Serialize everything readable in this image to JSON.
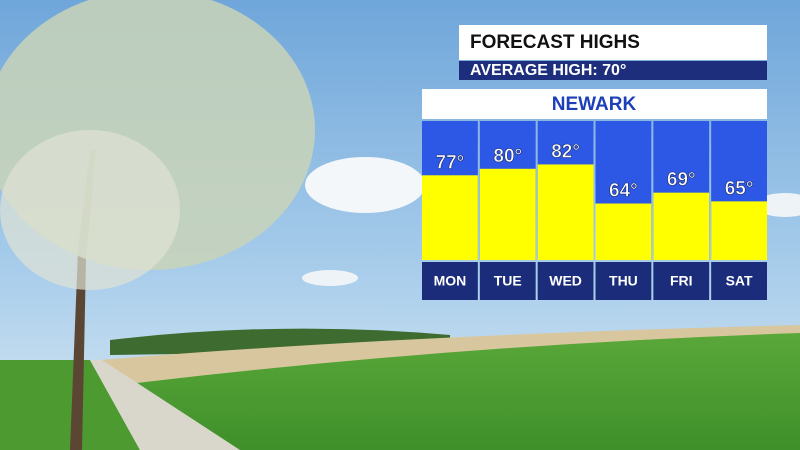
{
  "chart_data": {
    "type": "bar",
    "title": "FORECAST HIGHS",
    "subtitle": "AVERAGE HIGH: 70°",
    "location": "NEWARK",
    "categories": [
      "MON",
      "TUE",
      "WED",
      "THU",
      "FRI",
      "SAT"
    ],
    "values": [
      77,
      80,
      82,
      64,
      69,
      65
    ],
    "value_labels": [
      "77°",
      "80°",
      "82°",
      "64°",
      "69°",
      "65°"
    ],
    "color": "#ffff00",
    "ylim": [
      38,
      102
    ]
  }
}
